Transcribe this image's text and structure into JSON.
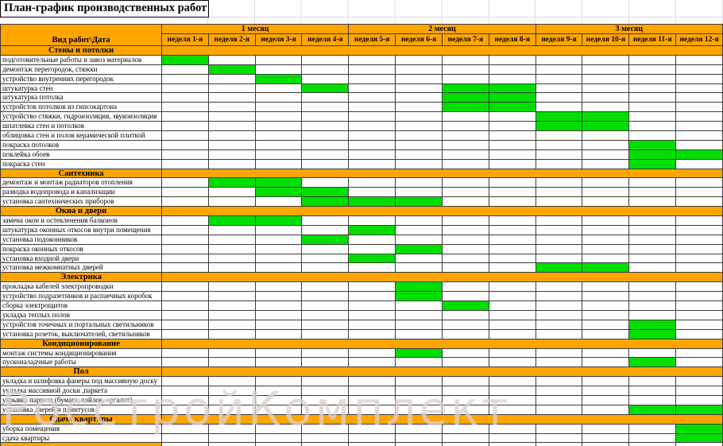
{
  "title": "План-график производственных работ",
  "watermark": "РосстройКомплект",
  "colors": {
    "orange": "#FFA500",
    "green": "#00DF00",
    "border": "#3c3c3c"
  },
  "header": {
    "corner": "Вид работ\\Дата",
    "months": [
      {
        "label": "1 месяц",
        "weeks": [
          "неделя 1-я",
          "неделя 2-я",
          "неделя 3-я",
          "неделя 4-я"
        ]
      },
      {
        "label": "2 месяц",
        "weeks": [
          "неделя 5-я",
          "неделя 6-я",
          "неделя 7-я",
          "неделя 8-я"
        ]
      },
      {
        "label": "3 месяц",
        "weeks": [
          "неделя 9-я",
          "неделя 10-я",
          "неделя 11-я",
          "неделя 12-я"
        ]
      }
    ]
  },
  "sections": [
    {
      "title": "Стены и потолки",
      "tasks": [
        {
          "name": "подготовительные работы и завоз материалов",
          "weeks": [
            1
          ]
        },
        {
          "name": "демонтаж перегородок, стяжки",
          "weeks": [
            2
          ]
        },
        {
          "name": "устройство внутренних перегородок",
          "weeks": [
            3
          ]
        },
        {
          "name": "штукатурка стен",
          "weeks": [
            4,
            7,
            8
          ]
        },
        {
          "name": "штукатурка потолка",
          "weeks": [
            7,
            8
          ]
        },
        {
          "name": "устройстов потолков из гипсокартона",
          "weeks": [
            7,
            8
          ]
        },
        {
          "name": "устройство стяжки, гидроизоляция, звукоизоляция",
          "weeks": [
            9,
            10
          ]
        },
        {
          "name": "шпатлевка стен и потолков",
          "weeks": [
            9,
            10
          ]
        },
        {
          "name": "облицовка стен и полов керамической плиткой",
          "weeks": []
        },
        {
          "name": "покраска потолков",
          "weeks": [
            11
          ]
        },
        {
          "name": "поклейка обоев",
          "weeks": [
            11,
            12
          ]
        },
        {
          "name": "покраска стен",
          "weeks": [
            11
          ]
        }
      ]
    },
    {
      "title": "Сантехника",
      "tasks": [
        {
          "name": "демонтаж и монтаж радиаторов отопления",
          "weeks": [
            2,
            3
          ]
        },
        {
          "name": "разводка водопровода и канализации",
          "weeks": [
            3,
            4
          ]
        },
        {
          "name": "установка сантехнических приборов",
          "weeks": [
            4,
            5,
            6
          ]
        }
      ]
    },
    {
      "title": "Окна и двери",
      "tasks": [
        {
          "name": "замена окон и остекленения балконов",
          "weeks": [
            2,
            3
          ]
        },
        {
          "name": "штукатурка оконных откосов внутри помещения",
          "weeks": [
            5
          ]
        },
        {
          "name": "установка подоконников",
          "weeks": [
            4
          ]
        },
        {
          "name": "покраска оконных откосов",
          "weeks": [
            6
          ]
        },
        {
          "name": "установка входной двери",
          "weeks": [
            5
          ]
        },
        {
          "name": "установка межкомнатных дверей",
          "weeks": [
            9,
            10
          ]
        }
      ]
    },
    {
      "title": "Электрика",
      "tasks": [
        {
          "name": "прокладка кабелей электропроводки",
          "weeks": [
            6
          ]
        },
        {
          "name": "устройство подразетников и распаечных коробок",
          "weeks": [
            6
          ]
        },
        {
          "name": "сборка электрощитов",
          "weeks": [
            7
          ]
        },
        {
          "name": "укладка теплых полов",
          "weeks": []
        },
        {
          "name": "устройстов точечных и портальных светильников",
          "weeks": [
            11
          ]
        },
        {
          "name": "установка розеток, выключателей, светильников",
          "weeks": [
            11
          ]
        }
      ]
    },
    {
      "title": "Кондиционирование",
      "tasks": [
        {
          "name": "монтаж системы кондиционирования",
          "weeks": [
            6
          ]
        },
        {
          "name": "пусконаладчные работы",
          "weeks": [
            11
          ]
        }
      ]
    },
    {
      "title": "Пол",
      "tasks": [
        {
          "name": "укладка и шлифовка фанеры под массивную доску",
          "weeks": []
        },
        {
          "name": "укладка массивной доски ,паркета",
          "weeks": []
        },
        {
          "name": "укрывка паркета (бумага, войлок, оргалит)",
          "weeks": []
        },
        {
          "name": "установка дверей и плинтусов",
          "weeks": [
            11,
            12
          ]
        }
      ]
    },
    {
      "title": "Сдача квартиры",
      "tasks": [
        {
          "name": "уборка помещения",
          "weeks": [
            12
          ]
        },
        {
          "name": "сдача квартиры",
          "weeks": [
            12
          ]
        }
      ]
    }
  ]
}
